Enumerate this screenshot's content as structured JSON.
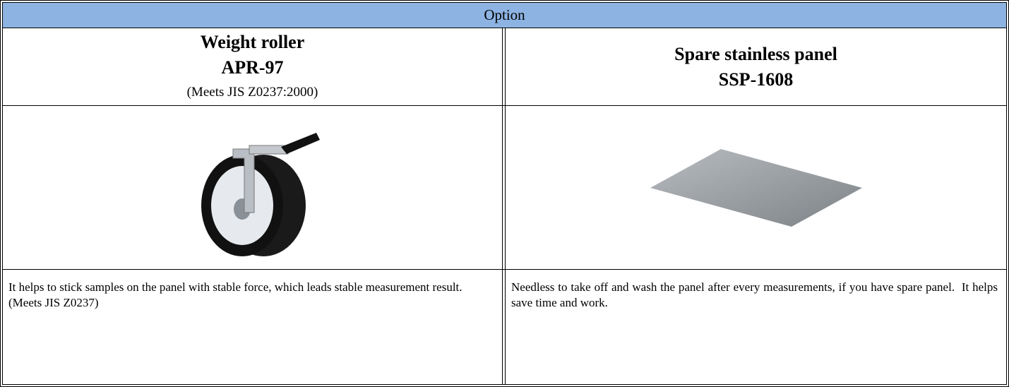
{
  "table": {
    "header": "Option",
    "columns": [
      {
        "name": "Weight roller",
        "model": "APR-97",
        "note": "(Meets JIS Z0237:2000)",
        "description": "It helps to stick samples on the panel with stable force, which leads stable measurement result. (Meets JIS Z0237)"
      },
      {
        "name": "Spare stainless panel",
        "model": "SSP-1608",
        "description": "Needless to take off and wash the panel after every measurements, if you have spare panel.  It helps save time and work."
      }
    ]
  }
}
